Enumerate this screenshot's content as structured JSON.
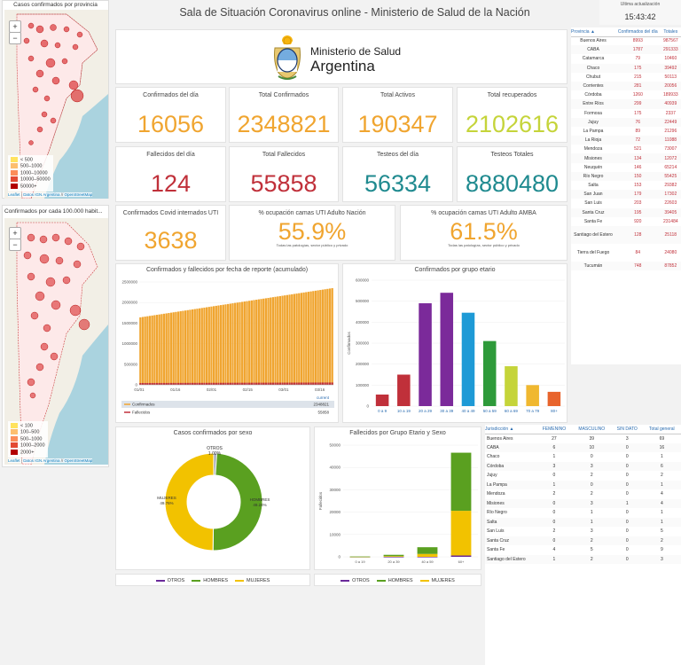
{
  "header": {
    "title": "Sala de Situación Coronavirus online - Ministerio de Salud de la Nación",
    "update_label": "Ultima actualización",
    "time": "15:43:42"
  },
  "logo": {
    "line1": "Ministerio de Salud",
    "line2": "Argentina"
  },
  "maps": [
    {
      "title": "Casos confirmados por provincia",
      "zoom_in": "+",
      "zoom_out": "−",
      "legend": [
        "< 500",
        "500–1000",
        "1000–10000",
        "10000–50000",
        "50000+"
      ],
      "attrib_prefix": "Leaflet",
      "attrib_sep": " | ",
      "attrib_link1": "Datos IGN Argentina",
      "attrib_sep2": " // ",
      "attrib_link2": "OpenStreetMap"
    },
    {
      "title": "Confirmados por cada 100.000 habit...",
      "zoom_in": "+",
      "zoom_out": "−",
      "legend": [
        "< 100",
        "100–500",
        "500–1000",
        "1000–2000",
        "2000+"
      ],
      "attrib_prefix": "Leaflet",
      "attrib_sep": " | ",
      "attrib_link1": "Datos IGN Argentina",
      "attrib_sep2": " // ",
      "attrib_link2": "OpenStreetMap"
    }
  ],
  "kpis": [
    {
      "label": "Confirmados del día",
      "value": "16056",
      "color": "#f0a530"
    },
    {
      "label": "Total Confirmados",
      "value": "2348821",
      "color": "#f0a530"
    },
    {
      "label": "Total Activos",
      "value": "190347",
      "color": "#f0a530"
    },
    {
      "label": "Total recuperados",
      "value": "2102616",
      "color": "#c5d43a"
    },
    {
      "label": "Fallecidos del día",
      "value": "124",
      "color": "#c0303a"
    },
    {
      "label": "Total Fallecidos",
      "value": "55858",
      "color": "#c0303a"
    },
    {
      "label": "Testeos del día",
      "value": "56334",
      "color": "#1f8a8f"
    },
    {
      "label": "Testeos Totales",
      "value": "8880480",
      "color": "#1f8a8f"
    }
  ],
  "uti": [
    {
      "label": "Confirmados Covid internados UTI",
      "value": "3638",
      "color": "#f0a530"
    },
    {
      "label": "% ocupación camas UTI Adulto Nación",
      "value": "55.9%",
      "sub": "Todas las patologías, sector público y privado",
      "color": "#f0a530"
    },
    {
      "label": "% ocupación camas UTI Adulto AMBA",
      "value": "61.5%",
      "sub": "Todas las patologías, sector público y privado",
      "color": "#f0a530"
    }
  ],
  "provinces": {
    "headers": [
      "Provincia",
      "Confirmados del día",
      "Totales"
    ],
    "sort_icon": "▲",
    "rows": [
      [
        "Buenos Aires",
        "8993",
        "987567"
      ],
      [
        "CABA",
        "1787",
        "291333"
      ],
      [
        "Catamarca",
        "79",
        "10460"
      ],
      [
        "Chaco",
        "175",
        "39492"
      ],
      [
        "Chubut",
        "215",
        "50113"
      ],
      [
        "Corrientes",
        "281",
        "20056"
      ],
      [
        "Córdoba",
        "1260",
        "189933"
      ],
      [
        "Entre Ríos",
        "299",
        "40939"
      ],
      [
        "Formosa",
        "175",
        "2337"
      ],
      [
        "Jujuy",
        "76",
        "22449"
      ],
      [
        "La Pampa",
        "89",
        "21296"
      ],
      [
        "La Rioja",
        "72",
        "11088"
      ],
      [
        "Mendoza",
        "521",
        "73007"
      ],
      [
        "Misiones",
        "134",
        "12072"
      ],
      [
        "Neuquén",
        "146",
        "65214"
      ],
      [
        "Río Negro",
        "150",
        "55425"
      ],
      [
        "Salta",
        "153",
        "29382"
      ],
      [
        "San Juan",
        "179",
        "17302"
      ],
      [
        "San Luis",
        "203",
        "22603"
      ],
      [
        "Santa Cruz",
        "195",
        "39405"
      ],
      [
        "Santa Fe",
        "920",
        "231484"
      ],
      [
        "Santiago del Estero",
        "128",
        "25118"
      ],
      [
        "Tierra del Fuego",
        "84",
        "24080"
      ],
      [
        "Tucumán",
        "748",
        "87852"
      ]
    ]
  },
  "jurisdiction": {
    "headers": [
      "Jurisdicción",
      "FEMENINO",
      "MASCULINO",
      "SIN DATO",
      "Total general"
    ],
    "sort_icon": "▲",
    "rows": [
      [
        "Buenos Aires",
        "27",
        "39",
        "3",
        "69"
      ],
      [
        "CABA",
        "6",
        "10",
        "0",
        "16"
      ],
      [
        "Chaco",
        "1",
        "0",
        "0",
        "1"
      ],
      [
        "Córdoba",
        "3",
        "3",
        "0",
        "6"
      ],
      [
        "Jujuy",
        "0",
        "2",
        "0",
        "2"
      ],
      [
        "La Pampa",
        "1",
        "0",
        "0",
        "1"
      ],
      [
        "Mendoza",
        "2",
        "2",
        "0",
        "4"
      ],
      [
        "Misiones",
        "0",
        "3",
        "1",
        "4"
      ],
      [
        "Río Negro",
        "0",
        "1",
        "0",
        "1"
      ],
      [
        "Salta",
        "0",
        "1",
        "0",
        "1"
      ],
      [
        "San Luis",
        "2",
        "3",
        "0",
        "5"
      ],
      [
        "Santa Cruz",
        "0",
        "2",
        "0",
        "2"
      ],
      [
        "Santa Fe",
        "4",
        "5",
        "0",
        "9"
      ],
      [
        "Santiago del Estero",
        "1",
        "2",
        "0",
        "3"
      ]
    ]
  },
  "chart_data": [
    {
      "type": "bar",
      "title": "Confirmados y fallecidos por fecha de reporte (acumulado)",
      "categories": [
        "01/01",
        "01/16",
        "02/01",
        "02/15",
        "03/01",
        "03/16"
      ],
      "ylim": [
        0,
        2500000
      ],
      "yticks": [
        "0",
        "500000",
        "1000000",
        "1500000",
        "2000000",
        "2500000"
      ],
      "series": [
        {
          "name": "Confirmados",
          "start": 1640000,
          "end": 2348821,
          "color": "#f0a530"
        },
        {
          "name": "Fallecidos",
          "start": 43500,
          "end": 55858,
          "color": "#c0303a"
        }
      ],
      "legend_header": "current",
      "legend_values": [
        "2348821",
        "55858"
      ]
    },
    {
      "type": "bar",
      "title": "Confirmados por grupo etario",
      "ylabel": "Confirmados",
      "categories": [
        "0 a 9",
        "10 a 19",
        "20 a 29",
        "30 a 39",
        "40 a 49",
        "50 a 59",
        "60 a 69",
        "70 a 79",
        "80+"
      ],
      "values": [
        55000,
        150000,
        490000,
        540000,
        445000,
        310000,
        190000,
        100000,
        68000
      ],
      "colors": [
        "#c0303a",
        "#c0303a",
        "#7b2a9a",
        "#7b2a9a",
        "#1e9ad6",
        "#2e9a3a",
        "#c5d43a",
        "#f0b830",
        "#e04a3a"
      ],
      "extra_color": "#e8642c",
      "extra_value": 68000,
      "ylim": [
        0,
        600000
      ],
      "yticks": [
        "0",
        "100000",
        "200000",
        "300000",
        "400000",
        "500000",
        "600000"
      ]
    },
    {
      "type": "pie",
      "title": "Casos confirmados por sexo",
      "slices": [
        {
          "name": "OTROS",
          "value": 1.0,
          "color": "#9aa0b0"
        },
        {
          "name": "HOMBRES",
          "value": 49.24,
          "color": "#5aa020"
        },
        {
          "name": "MUJERES",
          "value": 49.76,
          "color": "#f2c200"
        }
      ],
      "labels": {
        "otros": "OTROS",
        "otros_pct": "1.00%",
        "hombres": "HOMBRES",
        "hombres_pct": "49.24%",
        "mujeres": "MUJERES",
        "mujeres_pct": "49.76%"
      },
      "legend": [
        "OTROS",
        "HOMBRES",
        "MUJERES"
      ],
      "legend_colors": [
        "#6a2a9a",
        "#5aa020",
        "#f2c200"
      ]
    },
    {
      "type": "bar",
      "title": "Fallecidos por Grupo Etario y Sexo",
      "ylabel": "Fallecidos",
      "categories": [
        "0 a 19",
        "20 a 39",
        "40 a 59",
        "60+"
      ],
      "ylim": [
        0,
        50000
      ],
      "yticks": [
        "0",
        "10000",
        "20000",
        "30000",
        "40000",
        "50000"
      ],
      "series": [
        {
          "name": "OTROS",
          "values": [
            0,
            0,
            0,
            600
          ],
          "color": "#6a2a9a"
        },
        {
          "name": "MUJERES",
          "values": [
            60,
            300,
            1300,
            20000
          ],
          "color": "#f2c200"
        },
        {
          "name": "HOMBRES",
          "values": [
            80,
            600,
            3000,
            26000
          ],
          "color": "#5aa020"
        }
      ],
      "legend": [
        "OTROS",
        "HOMBRES",
        "MUJERES"
      ],
      "legend_colors": [
        "#6a2a9a",
        "#5aa020",
        "#f2c200"
      ]
    }
  ]
}
